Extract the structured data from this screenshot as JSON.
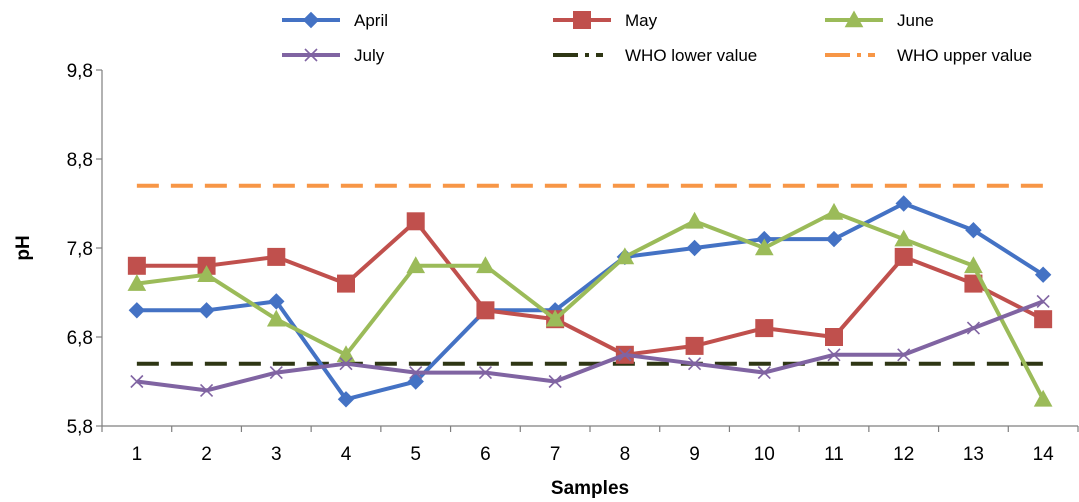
{
  "chart_data": {
    "type": "line",
    "title": "",
    "xlabel": "Samples",
    "ylabel": "pH",
    "x": [
      1,
      2,
      3,
      4,
      5,
      6,
      7,
      8,
      9,
      10,
      11,
      12,
      13,
      14
    ],
    "x_tick_labels": [
      "1",
      "2",
      "3",
      "4",
      "5",
      "6",
      "7",
      "8",
      "9",
      "10",
      "11",
      "12",
      "13",
      "14"
    ],
    "ylim": [
      5.8,
      9.8
    ],
    "y_ticks": [
      5.8,
      6.8,
      7.8,
      8.8,
      9.8
    ],
    "y_tick_labels": [
      "5,8",
      "6,8",
      "7,8",
      "8,8",
      "9,8"
    ],
    "grid": false,
    "legend_position": "top",
    "series": [
      {
        "name": "April",
        "color": "#4472C4",
        "marker": "diamond",
        "dashed": false,
        "values": [
          7.1,
          7.1,
          7.2,
          6.1,
          6.3,
          7.1,
          7.1,
          7.7,
          7.8,
          7.9,
          7.9,
          8.3,
          8.0,
          7.5
        ]
      },
      {
        "name": "May",
        "color": "#C0504D",
        "marker": "square",
        "dashed": false,
        "values": [
          7.6,
          7.6,
          7.7,
          7.4,
          8.1,
          7.1,
          7.0,
          6.6,
          6.7,
          6.9,
          6.8,
          7.7,
          7.4,
          7.0
        ]
      },
      {
        "name": "June",
        "color": "#9BBB59",
        "marker": "triangle",
        "dashed": false,
        "values": [
          7.4,
          7.5,
          7.0,
          6.6,
          7.6,
          7.6,
          7.0,
          7.7,
          8.1,
          7.8,
          8.2,
          7.9,
          7.6,
          6.1
        ]
      },
      {
        "name": "July",
        "color": "#8064A2",
        "marker": "x",
        "dashed": false,
        "values": [
          6.3,
          6.2,
          6.4,
          6.5,
          6.4,
          6.4,
          6.3,
          6.6,
          6.5,
          6.4,
          6.6,
          6.6,
          6.9,
          7.2
        ]
      },
      {
        "name": "WHO lower value",
        "color": "#2E3614",
        "marker": "none",
        "dashed": true,
        "values": [
          6.5,
          6.5,
          6.5,
          6.5,
          6.5,
          6.5,
          6.5,
          6.5,
          6.5,
          6.5,
          6.5,
          6.5,
          6.5,
          6.5
        ]
      },
      {
        "name": "WHO upper value",
        "color": "#F79646",
        "marker": "none",
        "dashed": true,
        "values": [
          8.5,
          8.5,
          8.5,
          8.5,
          8.5,
          8.5,
          8.5,
          8.5,
          8.5,
          8.5,
          8.5,
          8.5,
          8.5,
          8.5
        ]
      }
    ]
  }
}
